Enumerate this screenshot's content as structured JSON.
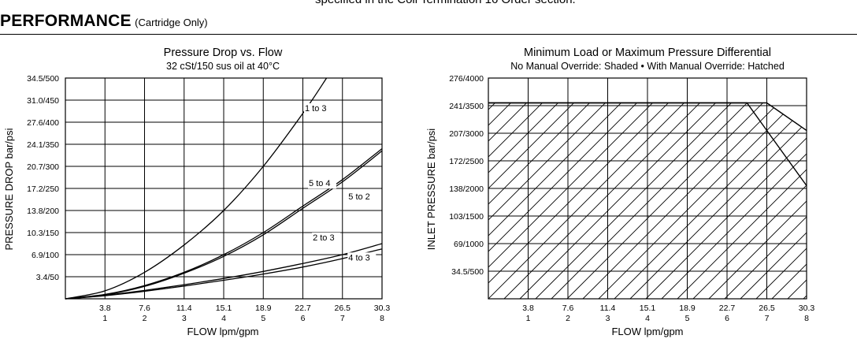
{
  "header": {
    "top_clipped_text": "specified in the Coil Termination 16 Order section.",
    "section_title": "PERFORMANCE",
    "section_subtitle": "(Cartridge Only)"
  },
  "chart_data": [
    {
      "type": "line",
      "title": "Pressure Drop vs. Flow",
      "subtitle": "32 cSt/150 sus oil at 40°C",
      "xlabel": "FLOW lpm/gpm",
      "ylabel": "PRESSURE DROP bar/psi",
      "x_ticks_lpm": [
        "3.8",
        "7.6",
        "11.4",
        "15.1",
        "18.9",
        "22.7",
        "26.5",
        "30.3"
      ],
      "x_ticks_gpm": [
        "1",
        "2",
        "3",
        "4",
        "5",
        "6",
        "7",
        "8"
      ],
      "y_ticks": [
        "3.4/50",
        "6.9/100",
        "10.3/150",
        "13.8/200",
        "17.2/250",
        "20.7/300",
        "24.1/350",
        "27.6/400",
        "31.0/450",
        "34.5/500"
      ],
      "xlim_gpm": [
        0,
        8
      ],
      "ylim_psi": [
        0,
        500
      ],
      "grid": true,
      "series": [
        {
          "name": "1 to 3",
          "x_gpm": [
            0,
            1,
            2,
            3,
            4,
            5,
            6,
            6.6
          ],
          "y_psi": [
            0,
            18,
            60,
            122,
            200,
            300,
            420,
            500
          ]
        },
        {
          "name": "5 to 4",
          "x_gpm": [
            0,
            1,
            2,
            3,
            4,
            5,
            6,
            7,
            8
          ],
          "y_psi": [
            0,
            10,
            30,
            60,
            100,
            150,
            210,
            270,
            340
          ]
        },
        {
          "name": "5 to 2",
          "x_gpm": [
            0,
            1,
            2,
            3,
            4,
            5,
            6,
            7,
            8
          ],
          "y_psi": [
            0,
            9,
            28,
            58,
            96,
            145,
            205,
            265,
            335
          ]
        },
        {
          "name": "2 to 3",
          "x_gpm": [
            0,
            1,
            2,
            3,
            4,
            5,
            6,
            7,
            8
          ],
          "y_psi": [
            0,
            8,
            19,
            32,
            46,
            62,
            80,
            100,
            125
          ]
        },
        {
          "name": "4 to 3",
          "x_gpm": [
            0,
            1,
            2,
            3,
            4,
            5,
            6,
            7,
            8
          ],
          "y_psi": [
            0,
            7,
            17,
            29,
            42,
            56,
            72,
            91,
            113
          ]
        }
      ],
      "series_labels": [
        {
          "text": "1 to 3",
          "x_gpm": 6.05,
          "y_psi": 425
        },
        {
          "text": "5 to 4",
          "x_gpm": 6.15,
          "y_psi": 255
        },
        {
          "text": "5 to 2",
          "x_gpm": 7.15,
          "y_psi": 225
        },
        {
          "text": "2 to 3",
          "x_gpm": 6.25,
          "y_psi": 132
        },
        {
          "text": "4 to 3",
          "x_gpm": 7.15,
          "y_psi": 87
        }
      ]
    },
    {
      "type": "area",
      "title": "Minimum Load or Maximum Pressure Differential",
      "subtitle": "No Manual Override: Shaded • With Manual Override: Hatched",
      "xlabel": "FLOW lpm/gpm",
      "ylabel": "INLET PRESSURE bar/psi",
      "x_ticks_lpm": [
        "3.8",
        "7.6",
        "11.4",
        "15.1",
        "18.9",
        "22.7",
        "26.5",
        "30.3"
      ],
      "x_ticks_gpm": [
        "1",
        "2",
        "3",
        "4",
        "5",
        "6",
        "7",
        "8"
      ],
      "y_ticks": [
        "34.5/500",
        "69/1000",
        "103/1500",
        "138/2000",
        "172/2500",
        "207/3000",
        "241/3500",
        "276/4000"
      ],
      "xlim_gpm": [
        0,
        8
      ],
      "ylim_psi": [
        0,
        4000
      ],
      "grid": true,
      "hatched_boundary": {
        "x_gpm": [
          0,
          6.5,
          7,
          8
        ],
        "y_psi": [
          3550,
          3550,
          3550,
          3050
        ]
      },
      "shaded_boundary": {
        "x_gpm": [
          0,
          6.5,
          7,
          8
        ],
        "y_psi": [
          3550,
          3550,
          3050,
          2050
        ]
      }
    }
  ]
}
